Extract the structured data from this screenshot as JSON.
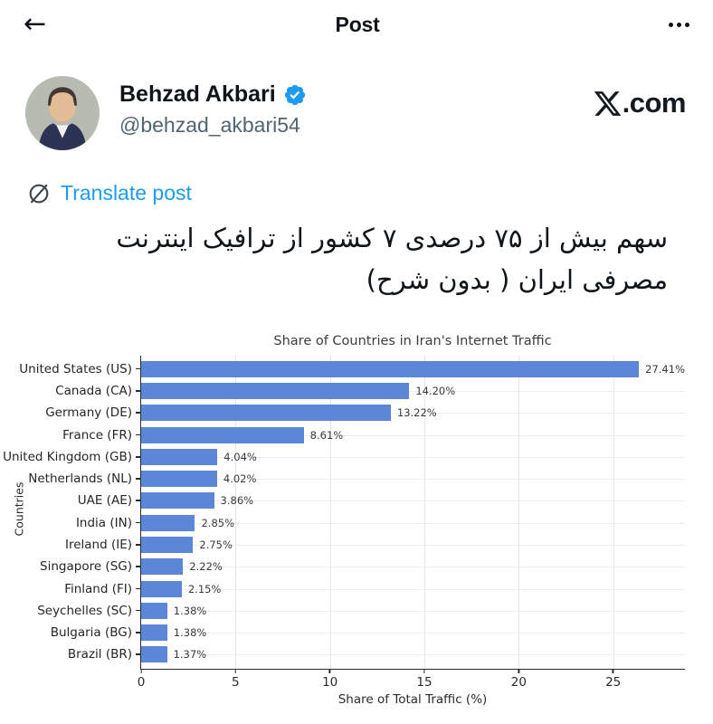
{
  "header": {
    "title": "Post"
  },
  "user": {
    "name": "Behzad Akbari",
    "handle": "@behzad_akbari54"
  },
  "watermark": {
    "full": "X.com",
    "suffix": ".com"
  },
  "translate": {
    "label": "Translate post"
  },
  "post": {
    "text": "سهم بیش از ۷۵ درصدی ۷ کشور از ترافیک اینترنت مصرفی ایران ( بدون شرح)",
    "lines": [
      "سهم بیش از ۷۵ درصدی ۷ کشور از ترافیک اینترنت",
      "مصرفی ایران ( بدون شرح)"
    ]
  },
  "colors": {
    "accent_blue": "#1d9bf0",
    "bar_blue": "#5b87d9",
    "text_dark": "#0f1419",
    "text_gray": "#536471"
  },
  "chart_data": {
    "type": "bar",
    "orientation": "horizontal",
    "title": "Share of Countries in Iran's Internet Traffic",
    "xlabel": "Share of Total Traffic (%)",
    "ylabel": "Countries",
    "categories": [
      "United States (US)",
      "Canada (CA)",
      "Germany (DE)",
      "France (FR)",
      "United Kingdom (GB)",
      "Netherlands (NL)",
      "UAE (AE)",
      "India (IN)",
      "Ireland (IE)",
      "Singapore (SG)",
      "Finland (FI)",
      "Seychelles (SC)",
      "Bulgaria (BG)",
      "Brazil (BR)"
    ],
    "values": [
      27.41,
      14.2,
      13.22,
      8.61,
      4.04,
      4.02,
      3.86,
      2.85,
      2.75,
      2.22,
      2.15,
      1.38,
      1.38,
      1.37
    ],
    "value_labels": [
      "27.41%",
      "14.20%",
      "13.22%",
      "8.61%",
      "4.04%",
      "4.02%",
      "3.86%",
      "2.85%",
      "2.75%",
      "2.22%",
      "2.15%",
      "1.38%",
      "1.38%",
      "1.37%"
    ],
    "xlim": [
      0,
      28.8
    ],
    "xticks": [
      0,
      5,
      10,
      15,
      20,
      25
    ],
    "grid": true,
    "bar_color": "#5b87d9"
  }
}
